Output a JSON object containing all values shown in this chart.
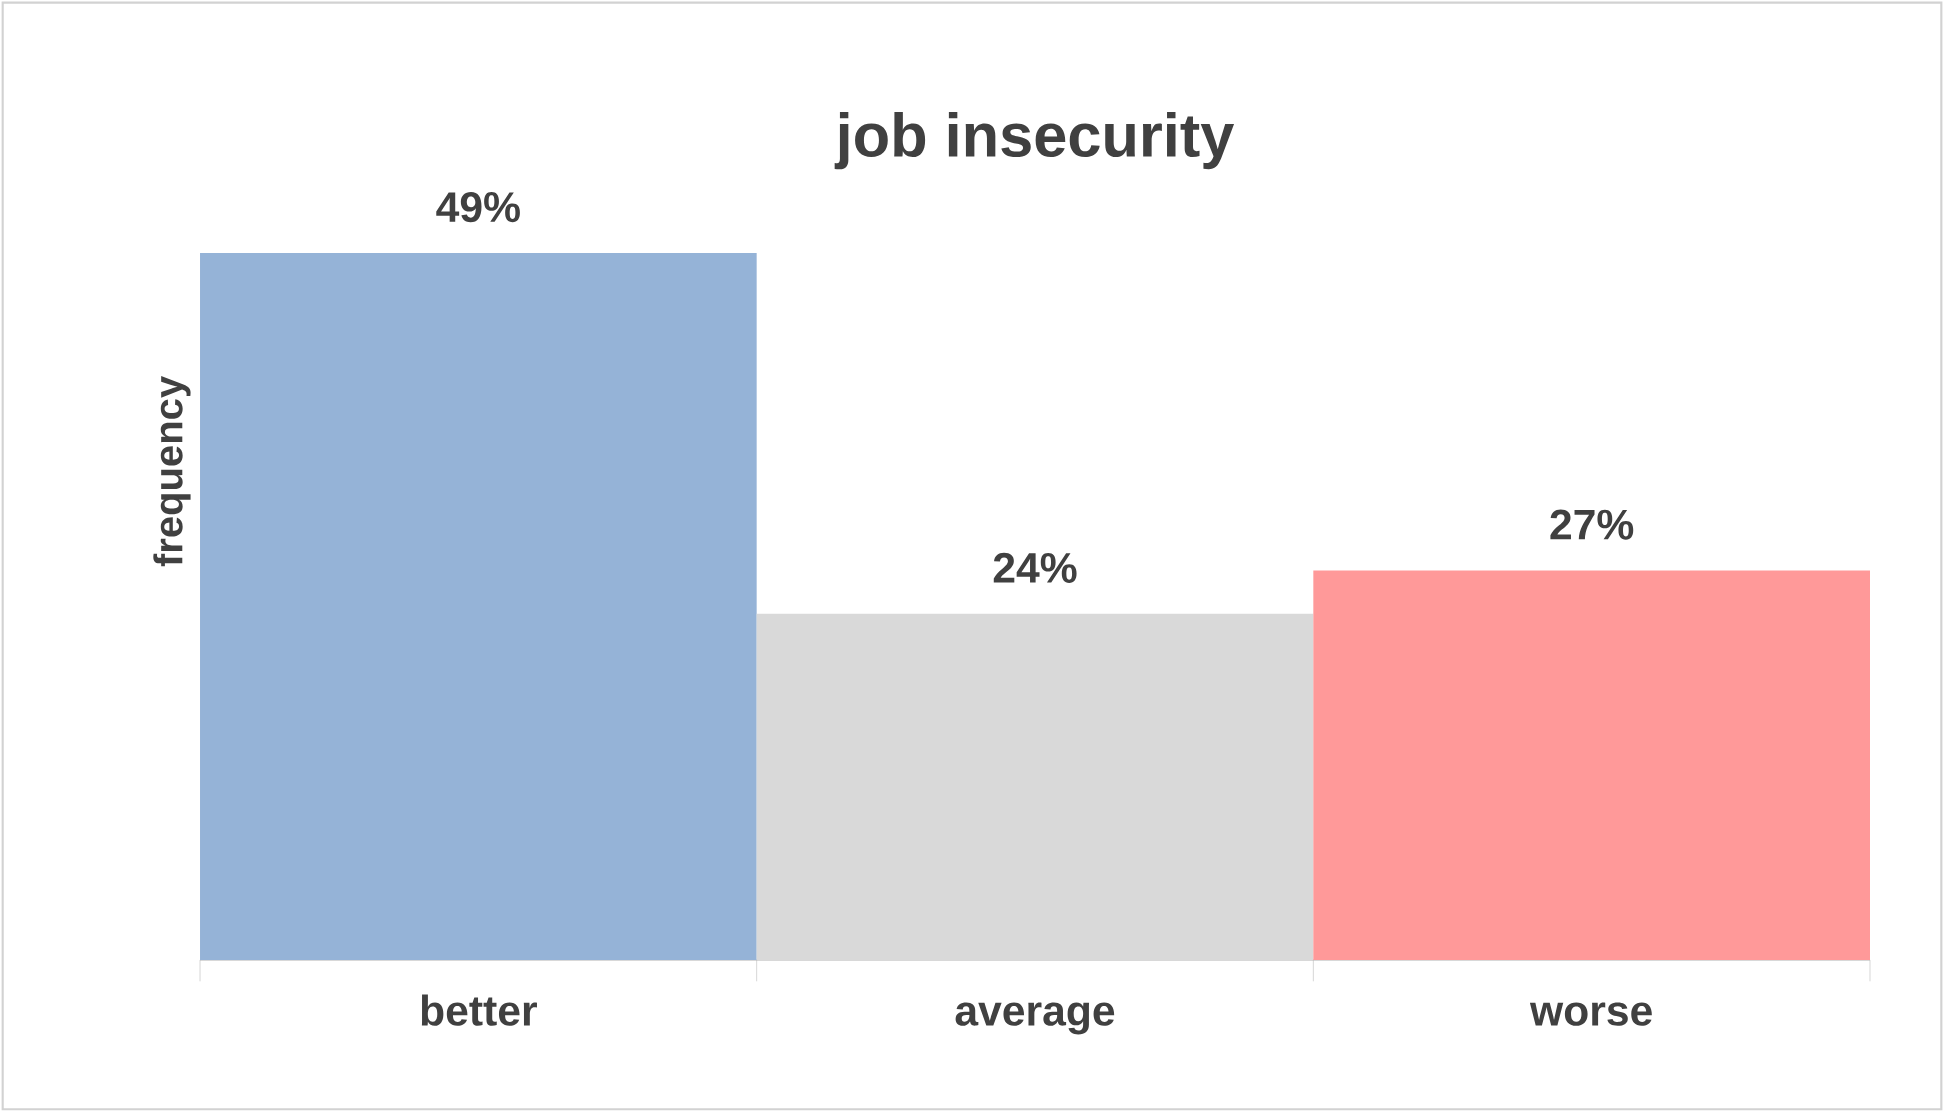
{
  "chart_data": {
    "type": "bar",
    "title": "job insecurity",
    "ylabel": "frequency",
    "categories": [
      "better",
      "average",
      "worse"
    ],
    "values": [
      49,
      24,
      27
    ],
    "colors": [
      "#95b3d7",
      "#d9d9d9",
      "#ff9999"
    ],
    "value_labels": [
      "49%",
      "24%",
      "27%"
    ]
  }
}
